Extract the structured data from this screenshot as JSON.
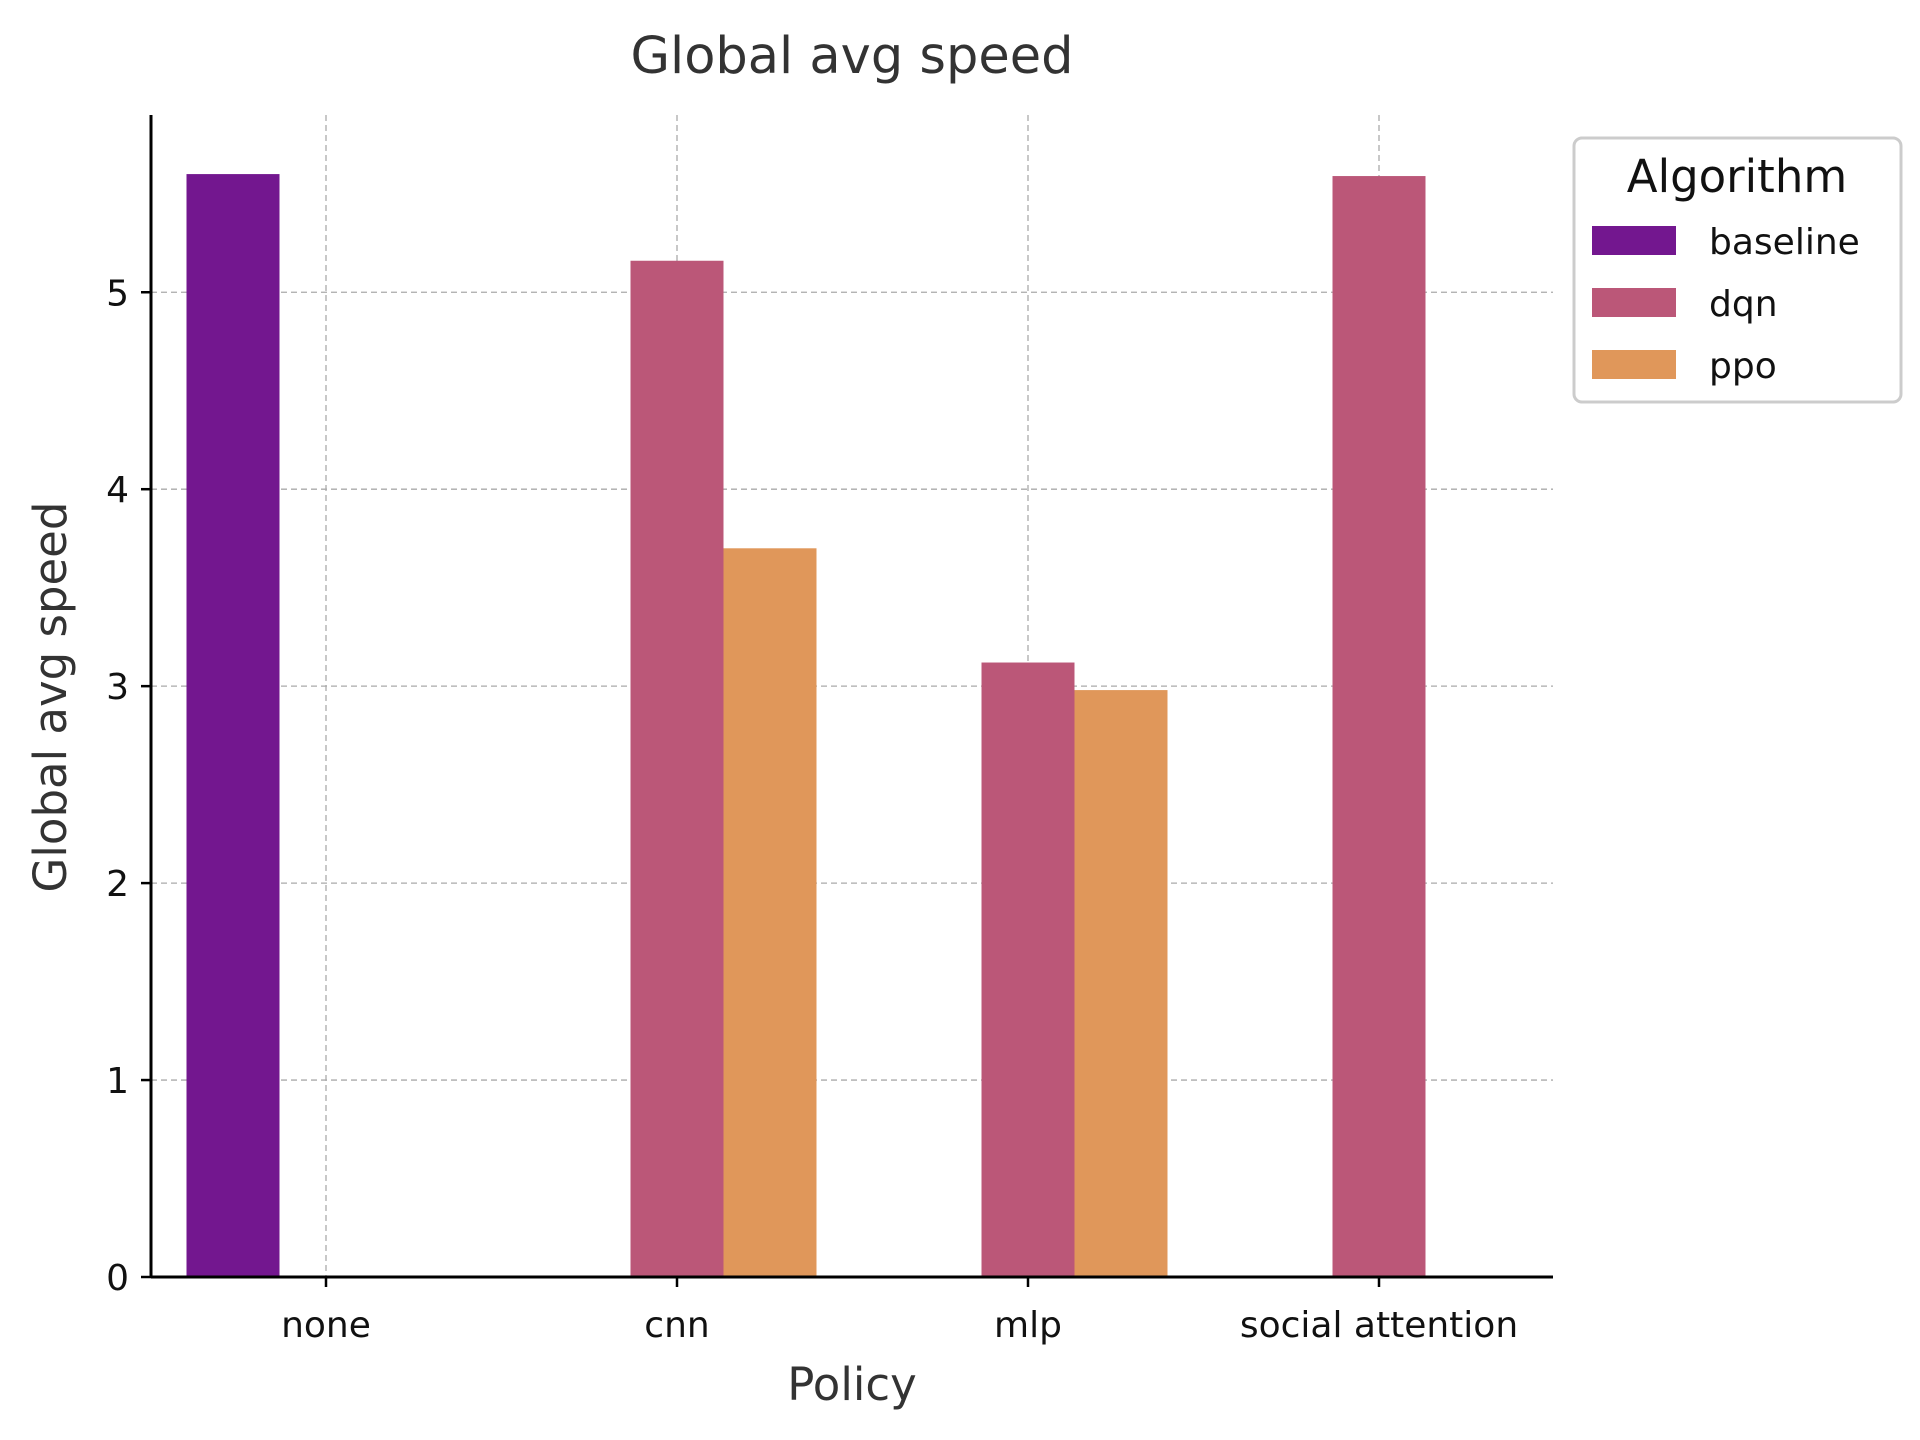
{
  "chart_data": {
    "type": "bar",
    "title": "Global avg speed",
    "xlabel": "Policy",
    "ylabel": "Global avg speed",
    "categories": [
      "none",
      "cnn",
      "mlp",
      "social attention"
    ],
    "series": [
      {
        "name": "baseline",
        "color": "#73178f",
        "values": [
          5.6,
          null,
          null,
          null
        ]
      },
      {
        "name": "dqn",
        "color": "#bb5778",
        "values": [
          null,
          5.16,
          3.12,
          5.59
        ]
      },
      {
        "name": "ppo",
        "color": "#e0975a",
        "values": [
          null,
          3.7,
          2.98,
          null
        ]
      }
    ],
    "ylim": [
      0,
      5.9
    ],
    "yticks": [
      0,
      1,
      2,
      3,
      4,
      5
    ],
    "grid": true,
    "legend": {
      "title": "Algorithm",
      "position": "upper right, outside plot"
    }
  }
}
